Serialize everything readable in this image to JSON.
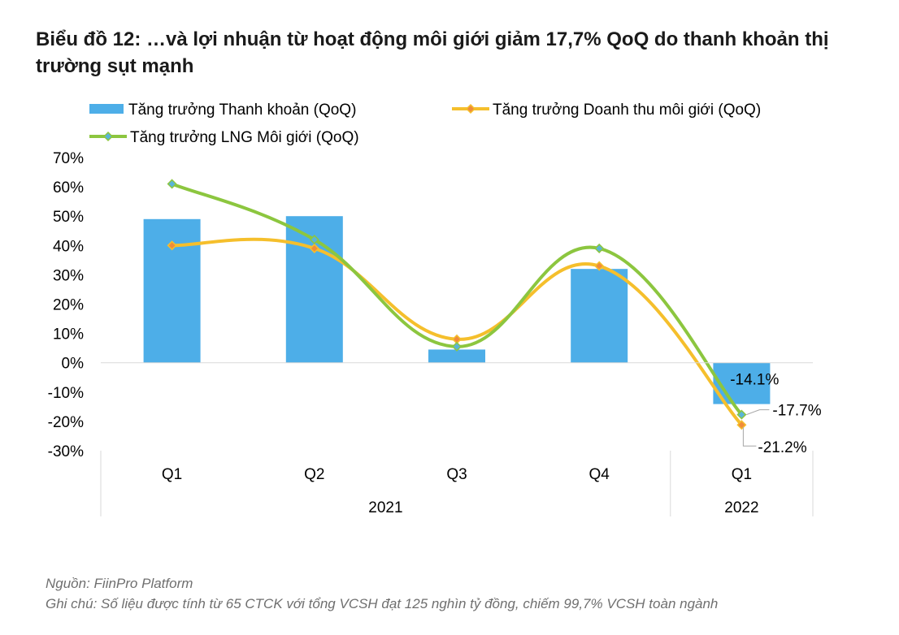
{
  "title": "Biểu đồ 12: …và lợi nhuận từ hoạt động môi giới giảm 17,7% QoQ do thanh khoản thị trường sụt mạnh",
  "source": "Nguồn: FiinPro Platform",
  "note": "Ghi chú: Số liệu được tính từ 65 CTCK với tổng VCSH đạt 125 nghìn tỷ đồng, chiếm 99,7% VCSH toàn ngành",
  "chart_data": {
    "type": "bar",
    "categories": [
      "Q1",
      "Q2",
      "Q3",
      "Q4",
      "Q1"
    ],
    "groups": [
      {
        "label": "2021",
        "span": [
          0,
          3
        ]
      },
      {
        "label": "2022",
        "span": [
          4,
          4
        ]
      }
    ],
    "ylim": [
      -0.3,
      0.7
    ],
    "yticks": [
      0.7,
      0.6,
      0.5,
      0.4,
      0.3,
      0.2,
      0.1,
      0,
      -0.1,
      -0.2,
      -0.3
    ],
    "ytick_labels": [
      "70%",
      "60%",
      "50%",
      "40%",
      "30%",
      "20%",
      "10%",
      "0%",
      "-10%",
      "-20%",
      "-30%"
    ],
    "legend_position": "top",
    "series": [
      {
        "name": "Tăng trưởng Thanh khoản (QoQ)",
        "kind": "bar",
        "color": "#4daee8",
        "values": [
          0.49,
          0.5,
          0.045,
          0.32,
          -0.141
        ],
        "labels": [
          "",
          "",
          "",
          "",
          "-14.1%"
        ]
      },
      {
        "name": "Tăng trưởng Doanh thu môi giới (QoQ)",
        "kind": "smooth-line",
        "color": "#f5bf2c",
        "marker_color": "#f08c3a",
        "values": [
          0.4,
          0.39,
          0.08,
          0.33,
          -0.212
        ],
        "labels": [
          "",
          "",
          "",
          "",
          "-21.2%"
        ]
      },
      {
        "name": "Tăng trưởng LNG Môi giới (QoQ)",
        "kind": "smooth-line",
        "color": "#8cc63f",
        "marker_color": "#5ab4d6",
        "values": [
          0.61,
          0.42,
          0.055,
          0.39,
          -0.177
        ],
        "labels": [
          "",
          "",
          "",
          "",
          "-17.7%"
        ]
      }
    ]
  }
}
